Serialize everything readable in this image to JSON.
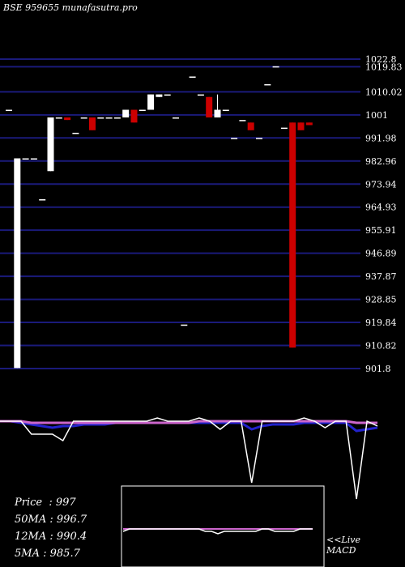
{
  "header": {
    "title": "BSE 959655 munafasutra.pro"
  },
  "stats": [
    {
      "label": "Price",
      "value": "997"
    },
    {
      "label": "50MA",
      "value": "996.7"
    },
    {
      "label": "12MA",
      "value": "990.4"
    },
    {
      "label": "5MA",
      "value": "985.7"
    }
  ],
  "macd_label_1": "<<Live",
  "macd_label_2": "MACD",
  "colors": {
    "background": "#000000",
    "gridline": "#1a1a7a",
    "bullish": "#ffffff",
    "bearish": "#cc0000",
    "text": "#ffffff",
    "ma_purple": "#cc66cc",
    "ma_blue": "#2222cc"
  },
  "chart_data": {
    "type": "candlestick",
    "title": "BSE 959655 munafasutra.pro",
    "y_ticks": [
      "1022.8",
      "1019.83",
      "1010.02",
      "1001",
      "991.98",
      "982.96",
      "973.94",
      "964.93",
      "955.91",
      "946.89",
      "937.87",
      "928.85",
      "919.84",
      "910.82",
      "901.8"
    ],
    "y_tick_values": [
      1022.8,
      1019.83,
      1010.02,
      1001,
      991.98,
      982.96,
      973.94,
      964.93,
      955.91,
      946.89,
      937.87,
      928.85,
      919.84,
      910.82,
      901.8
    ],
    "ylim": [
      901.8,
      1022.8
    ],
    "candles": [
      {
        "o": 1003,
        "h": 1003,
        "l": 1003,
        "c": 1003
      },
      {
        "o": 902,
        "h": 984,
        "l": 902,
        "c": 984
      },
      {
        "o": 984,
        "h": 984,
        "l": 984,
        "c": 984
      },
      {
        "o": 984,
        "h": 984,
        "l": 984,
        "c": 984
      },
      {
        "o": 968,
        "h": 968,
        "l": 968,
        "c": 968
      },
      {
        "o": 979,
        "h": 1000,
        "l": 979,
        "c": 1000
      },
      {
        "o": 1000,
        "h": 1000,
        "l": 1000,
        "c": 1000
      },
      {
        "o": 1000,
        "h": 1000,
        "l": 999,
        "c": 999
      },
      {
        "o": 994,
        "h": 994,
        "l": 994,
        "c": 994
      },
      {
        "o": 1000,
        "h": 1000,
        "l": 1000,
        "c": 1000
      },
      {
        "o": 1000,
        "h": 1000,
        "l": 995,
        "c": 995
      },
      {
        "o": 1000,
        "h": 1000,
        "l": 1000,
        "c": 1000
      },
      {
        "o": 1000,
        "h": 1000,
        "l": 1000,
        "c": 1000
      },
      {
        "o": 1000,
        "h": 1000,
        "l": 1000,
        "c": 1000
      },
      {
        "o": 1000,
        "h": 1003,
        "l": 1000,
        "c": 1003
      },
      {
        "o": 1003,
        "h": 1003,
        "l": 998,
        "c": 998
      },
      {
        "o": 1003,
        "h": 1003,
        "l": 1003,
        "c": 1003
      },
      {
        "o": 1003,
        "h": 1009,
        "l": 1003,
        "c": 1009
      },
      {
        "o": 1008,
        "h": 1009,
        "l": 1008,
        "c": 1009
      },
      {
        "o": 1009,
        "h": 1009,
        "l": 1009,
        "c": 1009
      },
      {
        "o": 1000,
        "h": 1000,
        "l": 1000,
        "c": 1000
      },
      {
        "o": 919,
        "h": 919,
        "l": 919,
        "c": 919
      },
      {
        "o": 1016,
        "h": 1016,
        "l": 1016,
        "c": 1016
      },
      {
        "o": 1009,
        "h": 1009,
        "l": 1009,
        "c": 1009
      },
      {
        "o": 1008,
        "h": 1008,
        "l": 1000,
        "c": 1000
      },
      {
        "o": 1000,
        "h": 1009,
        "l": 1000,
        "c": 1003
      },
      {
        "o": 1003,
        "h": 1003,
        "l": 1003,
        "c": 1003
      },
      {
        "o": 992,
        "h": 992,
        "l": 992,
        "c": 992
      },
      {
        "o": 999,
        "h": 999,
        "l": 999,
        "c": 999
      },
      {
        "o": 998,
        "h": 998,
        "l": 995,
        "c": 995
      },
      {
        "o": 992,
        "h": 992,
        "l": 992,
        "c": 992
      },
      {
        "o": 1013,
        "h": 1013,
        "l": 1013,
        "c": 1013
      },
      {
        "o": 1020,
        "h": 1020,
        "l": 1020,
        "c": 1020
      },
      {
        "o": 996,
        "h": 996,
        "l": 996,
        "c": 996
      },
      {
        "o": 998,
        "h": 998,
        "l": 910,
        "c": 910
      },
      {
        "o": 998,
        "h": 998,
        "l": 995,
        "c": 995
      },
      {
        "o": 998,
        "h": 998,
        "l": 997,
        "c": 997
      }
    ],
    "indicator_panel": {
      "price": [
        0,
        0,
        0,
        -8,
        -8,
        -8,
        -12,
        0,
        0,
        0,
        0,
        0,
        0,
        0,
        0,
        2,
        0,
        0,
        0,
        2,
        0,
        -5,
        0,
        0,
        -38,
        0,
        0,
        0,
        0,
        2,
        0,
        -4,
        0,
        0,
        -48,
        0,
        -3
      ],
      "ma_purple": [
        0,
        0,
        0,
        -1,
        -1,
        -1,
        -1,
        -1,
        -1,
        -1,
        -1,
        -1,
        -1,
        -1,
        -1,
        -1,
        -1,
        -1,
        -1,
        0,
        0,
        0,
        0,
        0,
        0,
        0,
        0,
        0,
        0,
        0,
        0,
        0,
        0,
        0,
        -1,
        -1,
        -1
      ],
      "ma_blue": [
        0,
        0,
        -1,
        -2,
        -3,
        -4,
        -3,
        -3,
        -2,
        -2,
        -2,
        -1,
        -1,
        -1,
        -1,
        -1,
        -1,
        -1,
        -1,
        -1,
        -1,
        -1,
        -1,
        -1,
        -5,
        -3,
        -2,
        -2,
        -2,
        -1,
        -1,
        -1,
        -1,
        -1,
        -6,
        -5,
        -4
      ]
    },
    "macd_panel": {
      "price": [
        1,
        2,
        2,
        2,
        2,
        2,
        2,
        2,
        2,
        2,
        2,
        2,
        2,
        1,
        1,
        0,
        1,
        1,
        1,
        1,
        1,
        1,
        2,
        2,
        1,
        1,
        1,
        1,
        2,
        2,
        2
      ],
      "signal": [
        2,
        2,
        2,
        2,
        2,
        2,
        2,
        2,
        2,
        2,
        2,
        2,
        2,
        2,
        2,
        2,
        2,
        2,
        2,
        2,
        2,
        2,
        2,
        2,
        2,
        2,
        2,
        2,
        2,
        2,
        2
      ]
    }
  }
}
